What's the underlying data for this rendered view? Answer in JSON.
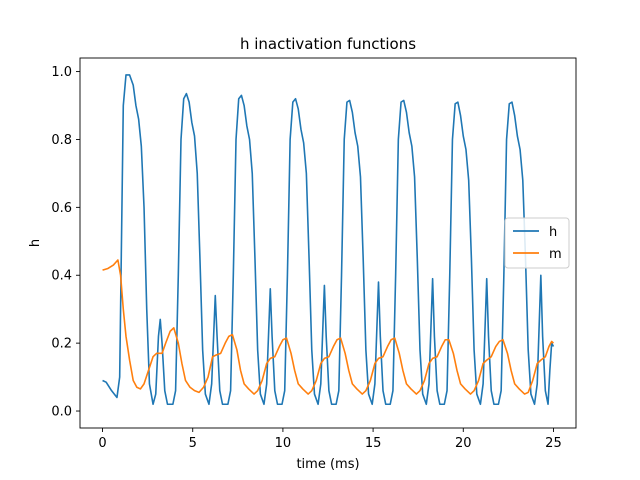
{
  "chart_data": {
    "type": "line",
    "title": "h inactivation functions",
    "xlabel": "time (ms)",
    "ylabel": "h",
    "xlim": [
      -1.25,
      26.25
    ],
    "ylim": [
      -0.05,
      1.04
    ],
    "xticks": [
      0,
      5,
      10,
      15,
      20,
      25
    ],
    "yticks": [
      0.0,
      0.2,
      0.4,
      0.6,
      0.8,
      1.0
    ],
    "xtick_labels": [
      "0",
      "5",
      "10",
      "15",
      "20",
      "25"
    ],
    "ytick_labels": [
      "0.0",
      "0.2",
      "0.4",
      "0.6",
      "0.8",
      "1.0"
    ],
    "grid": false,
    "legend_position": "center-right",
    "series": [
      {
        "name": "h",
        "color": "#1f77b4",
        "points": [
          [
            0,
            0.09
          ],
          [
            0.2,
            0.085
          ],
          [
            0.5,
            0.06
          ],
          [
            0.8,
            0.04
          ],
          [
            0.95,
            0.1
          ],
          [
            1.05,
            0.5
          ],
          [
            1.15,
            0.9
          ],
          [
            1.3,
            0.99
          ],
          [
            1.5,
            0.99
          ],
          [
            1.7,
            0.96
          ],
          [
            1.85,
            0.9
          ],
          [
            2.0,
            0.86
          ],
          [
            2.15,
            0.78
          ],
          [
            2.3,
            0.6
          ],
          [
            2.45,
            0.3
          ],
          [
            2.6,
            0.08
          ],
          [
            2.8,
            0.02
          ],
          [
            2.95,
            0.05
          ],
          [
            3.1,
            0.22
          ],
          [
            3.2,
            0.27
          ],
          [
            3.3,
            0.2
          ],
          [
            3.45,
            0.06
          ],
          [
            3.6,
            0.02
          ],
          [
            3.9,
            0.02
          ],
          [
            4.05,
            0.06
          ],
          [
            4.2,
            0.4
          ],
          [
            4.35,
            0.8
          ],
          [
            4.5,
            0.92
          ],
          [
            4.65,
            0.935
          ],
          [
            4.8,
            0.91
          ],
          [
            4.95,
            0.85
          ],
          [
            5.1,
            0.81
          ],
          [
            5.25,
            0.7
          ],
          [
            5.4,
            0.45
          ],
          [
            5.55,
            0.18
          ],
          [
            5.7,
            0.05
          ],
          [
            5.9,
            0.02
          ],
          [
            6.05,
            0.08
          ],
          [
            6.25,
            0.34
          ],
          [
            6.35,
            0.22
          ],
          [
            6.5,
            0.06
          ],
          [
            6.65,
            0.02
          ],
          [
            6.95,
            0.02
          ],
          [
            7.1,
            0.06
          ],
          [
            7.25,
            0.4
          ],
          [
            7.4,
            0.8
          ],
          [
            7.55,
            0.92
          ],
          [
            7.7,
            0.93
          ],
          [
            7.85,
            0.9
          ],
          [
            8.0,
            0.84
          ],
          [
            8.15,
            0.8
          ],
          [
            8.3,
            0.7
          ],
          [
            8.45,
            0.45
          ],
          [
            8.6,
            0.18
          ],
          [
            8.75,
            0.05
          ],
          [
            8.95,
            0.02
          ],
          [
            9.1,
            0.08
          ],
          [
            9.3,
            0.36
          ],
          [
            9.4,
            0.22
          ],
          [
            9.55,
            0.06
          ],
          [
            9.7,
            0.02
          ],
          [
            9.95,
            0.02
          ],
          [
            10.1,
            0.06
          ],
          [
            10.25,
            0.4
          ],
          [
            10.4,
            0.8
          ],
          [
            10.55,
            0.91
          ],
          [
            10.7,
            0.92
          ],
          [
            10.85,
            0.89
          ],
          [
            11.0,
            0.83
          ],
          [
            11.15,
            0.79
          ],
          [
            11.3,
            0.7
          ],
          [
            11.45,
            0.45
          ],
          [
            11.6,
            0.18
          ],
          [
            11.75,
            0.05
          ],
          [
            11.95,
            0.02
          ],
          [
            12.1,
            0.08
          ],
          [
            12.3,
            0.37
          ],
          [
            12.4,
            0.22
          ],
          [
            12.55,
            0.06
          ],
          [
            12.7,
            0.02
          ],
          [
            12.95,
            0.02
          ],
          [
            13.1,
            0.06
          ],
          [
            13.25,
            0.4
          ],
          [
            13.4,
            0.8
          ],
          [
            13.55,
            0.91
          ],
          [
            13.7,
            0.915
          ],
          [
            13.85,
            0.88
          ],
          [
            14.0,
            0.82
          ],
          [
            14.15,
            0.78
          ],
          [
            14.3,
            0.69
          ],
          [
            14.45,
            0.45
          ],
          [
            14.6,
            0.18
          ],
          [
            14.75,
            0.05
          ],
          [
            14.95,
            0.02
          ],
          [
            15.1,
            0.08
          ],
          [
            15.3,
            0.38
          ],
          [
            15.4,
            0.22
          ],
          [
            15.55,
            0.06
          ],
          [
            15.7,
            0.02
          ],
          [
            15.95,
            0.02
          ],
          [
            16.1,
            0.06
          ],
          [
            16.25,
            0.4
          ],
          [
            16.4,
            0.8
          ],
          [
            16.55,
            0.91
          ],
          [
            16.7,
            0.915
          ],
          [
            16.85,
            0.88
          ],
          [
            17.0,
            0.82
          ],
          [
            17.15,
            0.78
          ],
          [
            17.3,
            0.69
          ],
          [
            17.45,
            0.45
          ],
          [
            17.6,
            0.18
          ],
          [
            17.75,
            0.05
          ],
          [
            17.95,
            0.02
          ],
          [
            18.1,
            0.08
          ],
          [
            18.3,
            0.39
          ],
          [
            18.4,
            0.22
          ],
          [
            18.55,
            0.06
          ],
          [
            18.7,
            0.02
          ],
          [
            18.95,
            0.02
          ],
          [
            19.1,
            0.06
          ],
          [
            19.25,
            0.4
          ],
          [
            19.4,
            0.8
          ],
          [
            19.55,
            0.905
          ],
          [
            19.7,
            0.91
          ],
          [
            19.85,
            0.87
          ],
          [
            20.0,
            0.81
          ],
          [
            20.15,
            0.77
          ],
          [
            20.3,
            0.68
          ],
          [
            20.45,
            0.45
          ],
          [
            20.6,
            0.18
          ],
          [
            20.75,
            0.05
          ],
          [
            20.95,
            0.02
          ],
          [
            21.1,
            0.08
          ],
          [
            21.3,
            0.39
          ],
          [
            21.4,
            0.22
          ],
          [
            21.55,
            0.06
          ],
          [
            21.7,
            0.02
          ],
          [
            21.95,
            0.02
          ],
          [
            22.1,
            0.06
          ],
          [
            22.25,
            0.4
          ],
          [
            22.4,
            0.8
          ],
          [
            22.55,
            0.905
          ],
          [
            22.7,
            0.91
          ],
          [
            22.85,
            0.87
          ],
          [
            23.0,
            0.81
          ],
          [
            23.15,
            0.77
          ],
          [
            23.3,
            0.68
          ],
          [
            23.45,
            0.45
          ],
          [
            23.6,
            0.18
          ],
          [
            23.75,
            0.05
          ],
          [
            23.95,
            0.02
          ],
          [
            24.1,
            0.08
          ],
          [
            24.3,
            0.4
          ],
          [
            24.4,
            0.22
          ],
          [
            24.55,
            0.06
          ],
          [
            24.7,
            0.02
          ],
          [
            24.8,
            0.12
          ],
          [
            24.9,
            0.2
          ],
          [
            25.0,
            0.19
          ]
        ]
      },
      {
        "name": "m",
        "color": "#ff7f0e",
        "points": [
          [
            0,
            0.415
          ],
          [
            0.3,
            0.42
          ],
          [
            0.6,
            0.43
          ],
          [
            0.85,
            0.445
          ],
          [
            1.0,
            0.4
          ],
          [
            1.15,
            0.3
          ],
          [
            1.3,
            0.22
          ],
          [
            1.5,
            0.15
          ],
          [
            1.7,
            0.09
          ],
          [
            1.9,
            0.07
          ],
          [
            2.1,
            0.065
          ],
          [
            2.3,
            0.08
          ],
          [
            2.55,
            0.12
          ],
          [
            2.8,
            0.16
          ],
          [
            3.0,
            0.17
          ],
          [
            3.3,
            0.17
          ],
          [
            3.5,
            0.2
          ],
          [
            3.75,
            0.235
          ],
          [
            3.95,
            0.245
          ],
          [
            4.2,
            0.2
          ],
          [
            4.4,
            0.14
          ],
          [
            4.6,
            0.09
          ],
          [
            4.85,
            0.07
          ],
          [
            5.1,
            0.06
          ],
          [
            5.35,
            0.055
          ],
          [
            5.6,
            0.07
          ],
          [
            5.85,
            0.1
          ],
          [
            6.1,
            0.16
          ],
          [
            6.3,
            0.165
          ],
          [
            6.55,
            0.17
          ],
          [
            6.8,
            0.2
          ],
          [
            7.0,
            0.22
          ],
          [
            7.2,
            0.225
          ],
          [
            7.45,
            0.18
          ],
          [
            7.65,
            0.12
          ],
          [
            7.85,
            0.08
          ],
          [
            8.1,
            0.065
          ],
          [
            8.4,
            0.05
          ],
          [
            8.6,
            0.06
          ],
          [
            8.85,
            0.09
          ],
          [
            9.1,
            0.14
          ],
          [
            9.3,
            0.155
          ],
          [
            9.55,
            0.16
          ],
          [
            9.8,
            0.19
          ],
          [
            10.0,
            0.21
          ],
          [
            10.2,
            0.215
          ],
          [
            10.45,
            0.17
          ],
          [
            10.65,
            0.12
          ],
          [
            10.85,
            0.08
          ],
          [
            11.1,
            0.065
          ],
          [
            11.4,
            0.05
          ],
          [
            11.6,
            0.06
          ],
          [
            11.85,
            0.09
          ],
          [
            12.1,
            0.14
          ],
          [
            12.3,
            0.155
          ],
          [
            12.55,
            0.16
          ],
          [
            12.8,
            0.19
          ],
          [
            13.0,
            0.21
          ],
          [
            13.2,
            0.215
          ],
          [
            13.45,
            0.17
          ],
          [
            13.65,
            0.12
          ],
          [
            13.85,
            0.08
          ],
          [
            14.1,
            0.065
          ],
          [
            14.4,
            0.05
          ],
          [
            14.6,
            0.06
          ],
          [
            14.85,
            0.09
          ],
          [
            15.1,
            0.14
          ],
          [
            15.3,
            0.155
          ],
          [
            15.55,
            0.16
          ],
          [
            15.8,
            0.19
          ],
          [
            16.0,
            0.21
          ],
          [
            16.2,
            0.215
          ],
          [
            16.45,
            0.17
          ],
          [
            16.65,
            0.12
          ],
          [
            16.85,
            0.08
          ],
          [
            17.1,
            0.065
          ],
          [
            17.4,
            0.05
          ],
          [
            17.6,
            0.06
          ],
          [
            17.85,
            0.09
          ],
          [
            18.1,
            0.14
          ],
          [
            18.3,
            0.155
          ],
          [
            18.55,
            0.16
          ],
          [
            18.8,
            0.19
          ],
          [
            19.0,
            0.21
          ],
          [
            19.2,
            0.21
          ],
          [
            19.45,
            0.17
          ],
          [
            19.65,
            0.12
          ],
          [
            19.85,
            0.08
          ],
          [
            20.1,
            0.065
          ],
          [
            20.4,
            0.05
          ],
          [
            20.6,
            0.06
          ],
          [
            20.85,
            0.09
          ],
          [
            21.1,
            0.14
          ],
          [
            21.3,
            0.15
          ],
          [
            21.55,
            0.16
          ],
          [
            21.8,
            0.19
          ],
          [
            22.0,
            0.205
          ],
          [
            22.2,
            0.21
          ],
          [
            22.45,
            0.17
          ],
          [
            22.65,
            0.12
          ],
          [
            22.85,
            0.08
          ],
          [
            23.1,
            0.065
          ],
          [
            23.4,
            0.05
          ],
          [
            23.6,
            0.055
          ],
          [
            23.85,
            0.09
          ],
          [
            24.1,
            0.14
          ],
          [
            24.3,
            0.15
          ],
          [
            24.55,
            0.16
          ],
          [
            24.75,
            0.19
          ],
          [
            24.9,
            0.205
          ],
          [
            25.0,
            0.2
          ]
        ]
      }
    ]
  }
}
